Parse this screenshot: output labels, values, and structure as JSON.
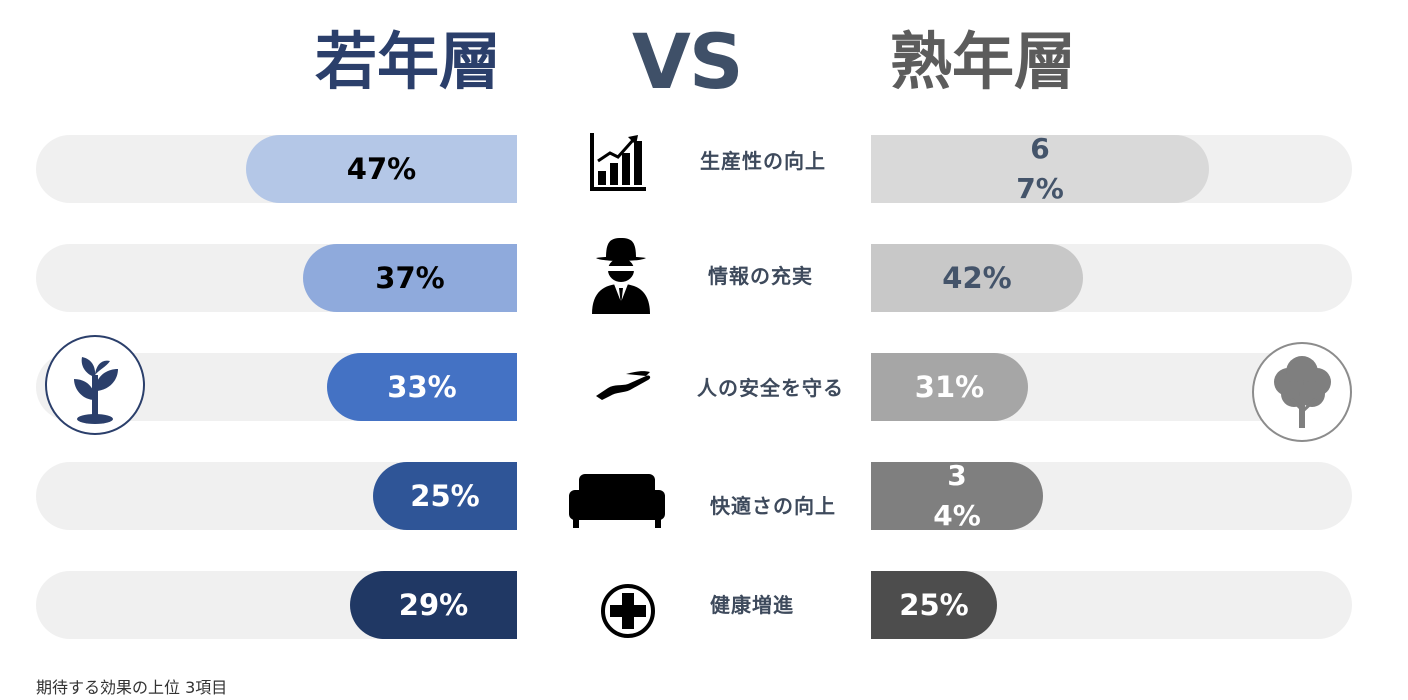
{
  "header": {
    "left_title": "若年層",
    "vs": "VS",
    "right_title": "熟年層"
  },
  "footnote": "期待する効果の上位 3項目",
  "colors": {
    "left_title": "#2b3f6b",
    "right_title": "#5c5c5c",
    "track": "#f0f0f0"
  },
  "chart_data": {
    "type": "bar",
    "categories": [
      "生産性の向上",
      "情報の充実",
      "人の安全を守る",
      "快適さの向上",
      "健康増進"
    ],
    "series": [
      {
        "name": "若年層",
        "values": [
          47,
          37,
          33,
          25,
          29
        ],
        "labels": [
          "47%",
          "37%",
          "33%",
          "25%",
          "29%"
        ],
        "colors": [
          "#b4c7e7",
          "#8faadc",
          "#4472c4",
          "#2f5597",
          "#203864"
        ],
        "text_colors": [
          "#000000",
          "#000000",
          "#ffffff",
          "#ffffff",
          "#ffffff"
        ]
      },
      {
        "name": "熟年層",
        "values": [
          67,
          42,
          31,
          34,
          25
        ],
        "labels": [
          "67%",
          "42%",
          "31%",
          "34%",
          "25%"
        ],
        "colors": [
          "#d9d9d9",
          "#c8c8c8",
          "#a6a6a6",
          "#7f7f7f",
          "#4d4d4d"
        ],
        "text_colors": [
          "#44546a",
          "#44546a",
          "#ffffff",
          "#ffffff",
          "#ffffff"
        ]
      }
    ],
    "icons": [
      "growth-chart-icon",
      "spy-agent-icon",
      "hand-icon",
      "sofa-icon",
      "medical-cross-icon"
    ],
    "xlim": [
      0,
      100
    ],
    "grid": false,
    "legend": "none"
  }
}
